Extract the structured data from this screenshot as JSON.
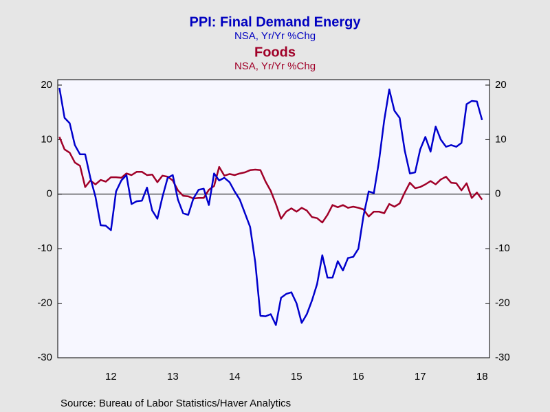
{
  "chart_data": {
    "type": "line",
    "title": "PPI: Final Demand Energy",
    "subtitle": "NSA, Yr/Yr %Chg",
    "title2": "Foods",
    "subtitle2": "NSA, Yr/Yr %Chg",
    "source": "Source:  Bureau of Labor Statistics/Haver Analytics",
    "x": [
      2011.667,
      2011.75,
      2011.833,
      2011.917,
      2012.0,
      2012.083,
      2012.167,
      2012.25,
      2012.333,
      2012.417,
      2012.5,
      2012.583,
      2012.667,
      2012.75,
      2012.833,
      2012.917,
      2013.0,
      2013.083,
      2013.167,
      2013.25,
      2013.333,
      2013.417,
      2013.5,
      2013.583,
      2013.667,
      2013.75,
      2013.833,
      2013.917,
      2014.0,
      2014.083,
      2014.167,
      2014.25,
      2014.333,
      2014.417,
      2014.5,
      2014.583,
      2014.667,
      2014.75,
      2014.833,
      2014.917,
      2015.0,
      2015.083,
      2015.167,
      2015.25,
      2015.333,
      2015.417,
      2015.5,
      2015.583,
      2015.667,
      2015.75,
      2015.833,
      2015.917,
      2016.0,
      2016.083,
      2016.167,
      2016.25,
      2016.333,
      2016.417,
      2016.5,
      2016.583,
      2016.667,
      2016.75,
      2016.833,
      2016.917,
      2017.0,
      2017.083,
      2017.167,
      2017.25,
      2017.333,
      2017.417,
      2017.5,
      2017.583,
      2017.667,
      2017.75,
      2017.833,
      2017.917,
      2018.0,
      2018.083,
      2018.167,
      2018.25,
      2018.333,
      2018.417,
      2018.5
    ],
    "series": [
      {
        "name": "PPI: Final Demand Energy",
        "color": "#0000cc",
        "values": [
          19.5,
          14,
          13,
          9,
          7.3,
          7.3,
          3,
          -0.5,
          -5.7,
          -5.8,
          -6.6,
          0.5,
          2.5,
          3.5,
          -1.8,
          -1.3,
          -1.2,
          1.2,
          -3,
          -4.5,
          -0.5,
          3,
          3.5,
          -1,
          -3.5,
          -3.8,
          -0.8,
          0.8,
          1,
          -2,
          3.8,
          2.5,
          3,
          2.2,
          0.5,
          -1,
          -3.5,
          -6,
          -12.5,
          -22.3,
          -22.4,
          -22,
          -24,
          -19,
          -18.3,
          -18,
          -20,
          -23.6,
          -22,
          -19.5,
          -16.5,
          -11.2,
          -15.3,
          -15.3,
          -12.3,
          -14,
          -11.7,
          -11.5,
          -10,
          -4,
          0.5,
          0.2,
          6,
          13.5,
          19.2,
          15.3,
          14,
          8,
          3.8,
          4,
          8.2,
          10.5,
          7.8,
          12.4,
          10,
          8.7,
          9,
          8.7,
          9.4,
          16.5,
          17.1,
          17,
          13.6
        ]
      },
      {
        "name": "Foods",
        "color": "#a00028",
        "values": [
          10.5,
          8.2,
          7.6,
          5.8,
          5.2,
          1.3,
          2.5,
          1.8,
          2.6,
          2.3,
          3.1,
          3.1,
          3.0,
          3.8,
          3.5,
          4.1,
          4.1,
          3.5,
          3.6,
          2.2,
          3.4,
          3.2,
          2.5,
          0.7,
          -0.3,
          -0.4,
          -0.8,
          -0.7,
          -0.7,
          0.8,
          1.5,
          5.0,
          3.4,
          3.7,
          3.5,
          3.8,
          4.0,
          4.4,
          4.5,
          4.4,
          2.3,
          0.6,
          -1.8,
          -4.5,
          -3.2,
          -2.6,
          -3.2,
          -2.5,
          -3.0,
          -4.2,
          -4.4,
          -5.2,
          -3.8,
          -2.0,
          -2.4,
          -2.0,
          -2.5,
          -2.3,
          -2.5,
          -2.8,
          -4.1,
          -3.2,
          -3.2,
          -3.5,
          -1.8,
          -2.3,
          -1.7,
          0.3,
          2.1,
          1.1,
          1.3,
          1.8,
          2.4,
          1.8,
          2.7,
          3.2,
          2.1,
          2.0,
          0.7,
          2.0,
          -0.7,
          0.3,
          -1.0
        ]
      }
    ],
    "xlim": [
      2011.64,
      2018.62
    ],
    "xticks": [
      {
        "value": 2012.5,
        "label": "12"
      },
      {
        "value": 2013.5,
        "label": "13"
      },
      {
        "value": 2014.5,
        "label": "14"
      },
      {
        "value": 2015.5,
        "label": "15"
      },
      {
        "value": 2016.5,
        "label": "16"
      },
      {
        "value": 2017.5,
        "label": "17"
      },
      {
        "value": 2018.5,
        "label": "18"
      }
    ],
    "ylim": [
      -30,
      21
    ],
    "yticks": [
      -30,
      -20,
      -10,
      0,
      10,
      20
    ],
    "zero_line": true
  }
}
